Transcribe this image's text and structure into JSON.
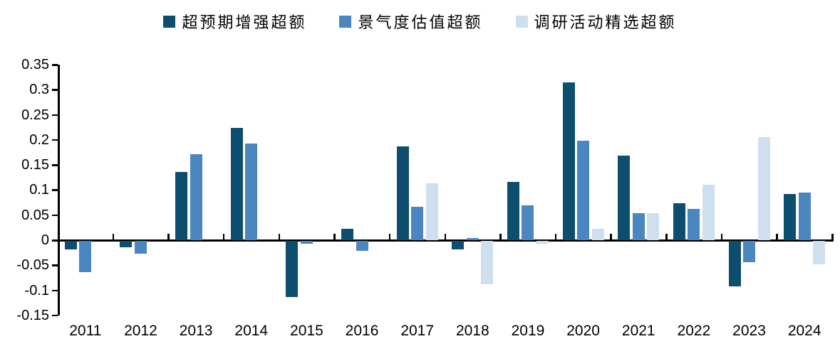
{
  "chart_data": {
    "type": "bar",
    "title": "",
    "xlabel": "",
    "ylabel": "",
    "categories": [
      "2011",
      "2012",
      "2013",
      "2014",
      "2015",
      "2016",
      "2017",
      "2018",
      "2019",
      "2020",
      "2021",
      "2022",
      "2023",
      "2024"
    ],
    "series": [
      {
        "name": "超预期增强超额",
        "color": "#0D4D6E",
        "values": [
          -0.017,
          -0.013,
          0.136,
          0.224,
          -0.112,
          0.022,
          0.187,
          -0.017,
          0.116,
          0.315,
          0.169,
          0.073,
          -0.09,
          0.092
        ]
      },
      {
        "name": "景气度估值超额",
        "color": "#4A86C0",
        "values": [
          -0.062,
          -0.025,
          0.172,
          0.193,
          -0.006,
          -0.02,
          0.067,
          0.004,
          0.07,
          0.198,
          0.054,
          0.063,
          -0.042,
          0.095
        ]
      },
      {
        "name": "调研活动精选超额",
        "color": "#CEDFF0",
        "values": [
          null,
          null,
          null,
          null,
          null,
          null,
          0.113,
          -0.087,
          -0.006,
          0.022,
          0.054,
          0.11,
          0.205,
          -0.047
        ]
      }
    ],
    "ylim": [
      -0.15,
      0.35
    ],
    "ytick_step": 0.05,
    "ytick_labels": [
      "0.35",
      "0.3",
      "0.25",
      "0.2",
      "0.15",
      "0.1",
      "0.05",
      "0",
      "-0.05",
      "-0.1",
      "-0.15"
    ],
    "ytick_values": [
      0.35,
      0.3,
      0.25,
      0.2,
      0.15,
      0.1,
      0.05,
      0,
      -0.05,
      -0.1,
      -0.15
    ],
    "grid": false,
    "legend_position": "top-center",
    "axis_color": "#000000",
    "background_color": "#ffffff"
  }
}
